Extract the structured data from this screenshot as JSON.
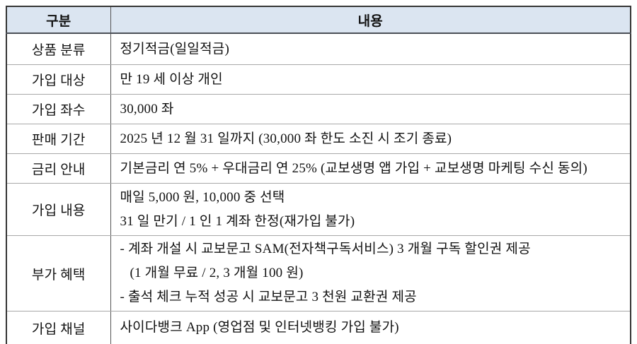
{
  "table": {
    "title_semantic": "savings-product-terms-table",
    "header": {
      "col1": "구분",
      "col2": "내용"
    },
    "rows": [
      {
        "label": "상품 분류",
        "lines": [
          "정기적금(일일적금)"
        ]
      },
      {
        "label": "가입 대상",
        "lines": [
          "만 19 세 이상 개인"
        ]
      },
      {
        "label": "가입 좌수",
        "lines": [
          "30,000 좌"
        ]
      },
      {
        "label": "판매 기간",
        "lines": [
          "2025 년 12 월 31 일까지 (30,000 좌 한도 소진 시 조기 종료)"
        ]
      },
      {
        "label": "금리 안내",
        "lines": [
          "기본금리 연 5% + 우대금리 연 25% (교보생명 앱 가입 + 교보생명 마케팅 수신 동의)"
        ]
      },
      {
        "label": "가입 내용",
        "lines": [
          "매일 5,000 원, 10,000 중 선택",
          "31 일 만기 / 1 인 1 계좌 한정(재가입 불가)"
        ]
      },
      {
        "label": "부가 혜택",
        "lines": [
          "- 계좌 개설 시 교보문고 SAM(전자책구독서비스) 3 개월 구독 할인권 제공",
          "(1 개월 무료 / 2, 3 개월 100 원)",
          "- 출석 체크 누적 성공 시 교보문고 3 천원 교환권 제공"
        ]
      },
      {
        "label": "가입 채널",
        "lines": [
          "사이다뱅크 App (영업점 및 인터넷뱅킹 가입 불가)"
        ]
      }
    ],
    "colors": {
      "header_background": "#dbe5f1",
      "outer_border": "#353535",
      "header_separator": "#4b4f57",
      "inner_grid_line": "#a8a8a8",
      "column_divider": "#565656",
      "text": "#111111"
    }
  }
}
